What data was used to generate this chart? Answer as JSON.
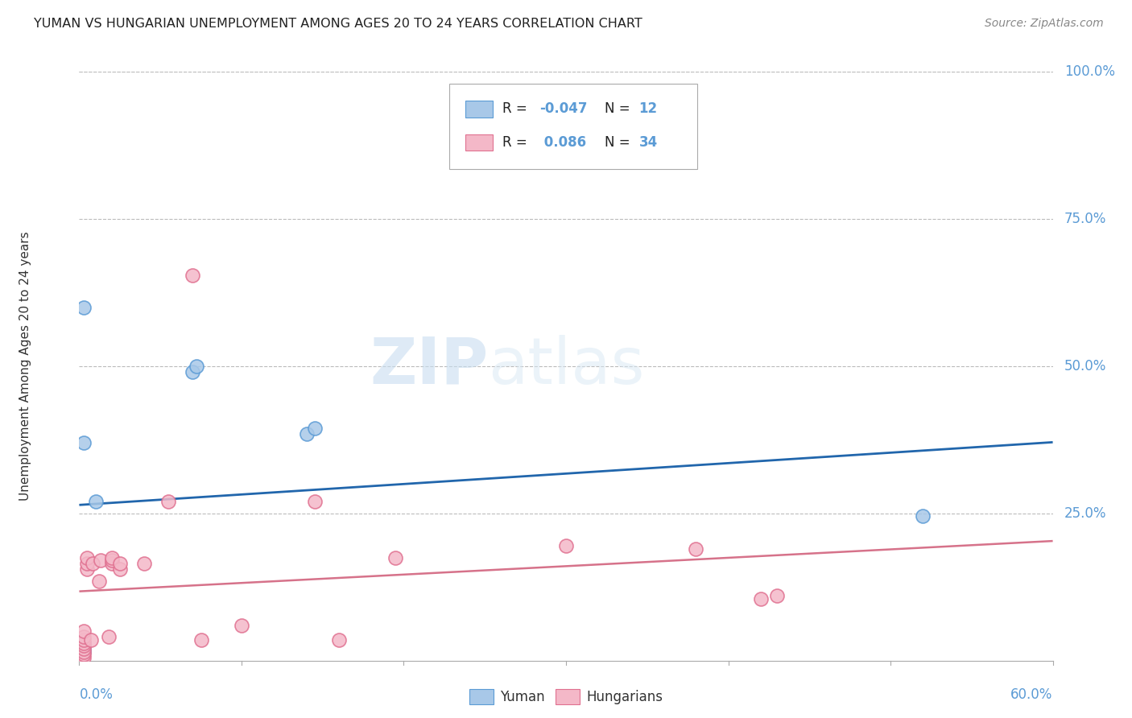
{
  "title": "YUMAN VS HUNGARIAN UNEMPLOYMENT AMONG AGES 20 TO 24 YEARS CORRELATION CHART",
  "source": "Source: ZipAtlas.com",
  "ylabel": "Unemployment Among Ages 20 to 24 years",
  "xlim": [
    0.0,
    0.6
  ],
  "ylim": [
    0.0,
    1.0
  ],
  "yticks": [
    0.0,
    0.25,
    0.5,
    0.75,
    1.0
  ],
  "background_color": "#ffffff",
  "watermark_zip": "ZIP",
  "watermark_atlas": "atlas",
  "legend_r_yuman": "-0.047",
  "legend_n_yuman": "12",
  "legend_r_hung": "0.086",
  "legend_n_hung": "34",
  "yuman_color": "#a8c8e8",
  "yuman_edge": "#5b9bd5",
  "hung_color": "#f4b8c8",
  "hung_edge": "#e07090",
  "trend_yuman_color": "#2166ac",
  "trend_hung_color": "#d6728a",
  "yuman_x": [
    0.003,
    0.003,
    0.003,
    0.003,
    0.003,
    0.003,
    0.01,
    0.07,
    0.072,
    0.14,
    0.145,
    0.52
  ],
  "yuman_y": [
    0.015,
    0.02,
    0.025,
    0.03,
    0.37,
    0.6,
    0.27,
    0.49,
    0.5,
    0.385,
    0.395,
    0.245
  ],
  "hung_x": [
    0.003,
    0.003,
    0.003,
    0.003,
    0.003,
    0.003,
    0.003,
    0.003,
    0.003,
    0.005,
    0.005,
    0.005,
    0.007,
    0.008,
    0.012,
    0.013,
    0.018,
    0.02,
    0.02,
    0.02,
    0.025,
    0.025,
    0.04,
    0.055,
    0.07,
    0.075,
    0.1,
    0.145,
    0.16,
    0.195,
    0.3,
    0.38,
    0.42,
    0.43
  ],
  "hung_y": [
    0.005,
    0.01,
    0.015,
    0.02,
    0.025,
    0.03,
    0.035,
    0.04,
    0.05,
    0.155,
    0.165,
    0.175,
    0.035,
    0.165,
    0.135,
    0.17,
    0.04,
    0.165,
    0.17,
    0.175,
    0.155,
    0.165,
    0.165,
    0.27,
    0.655,
    0.035,
    0.06,
    0.27,
    0.035,
    0.175,
    0.195,
    0.19,
    0.105,
    0.11
  ]
}
